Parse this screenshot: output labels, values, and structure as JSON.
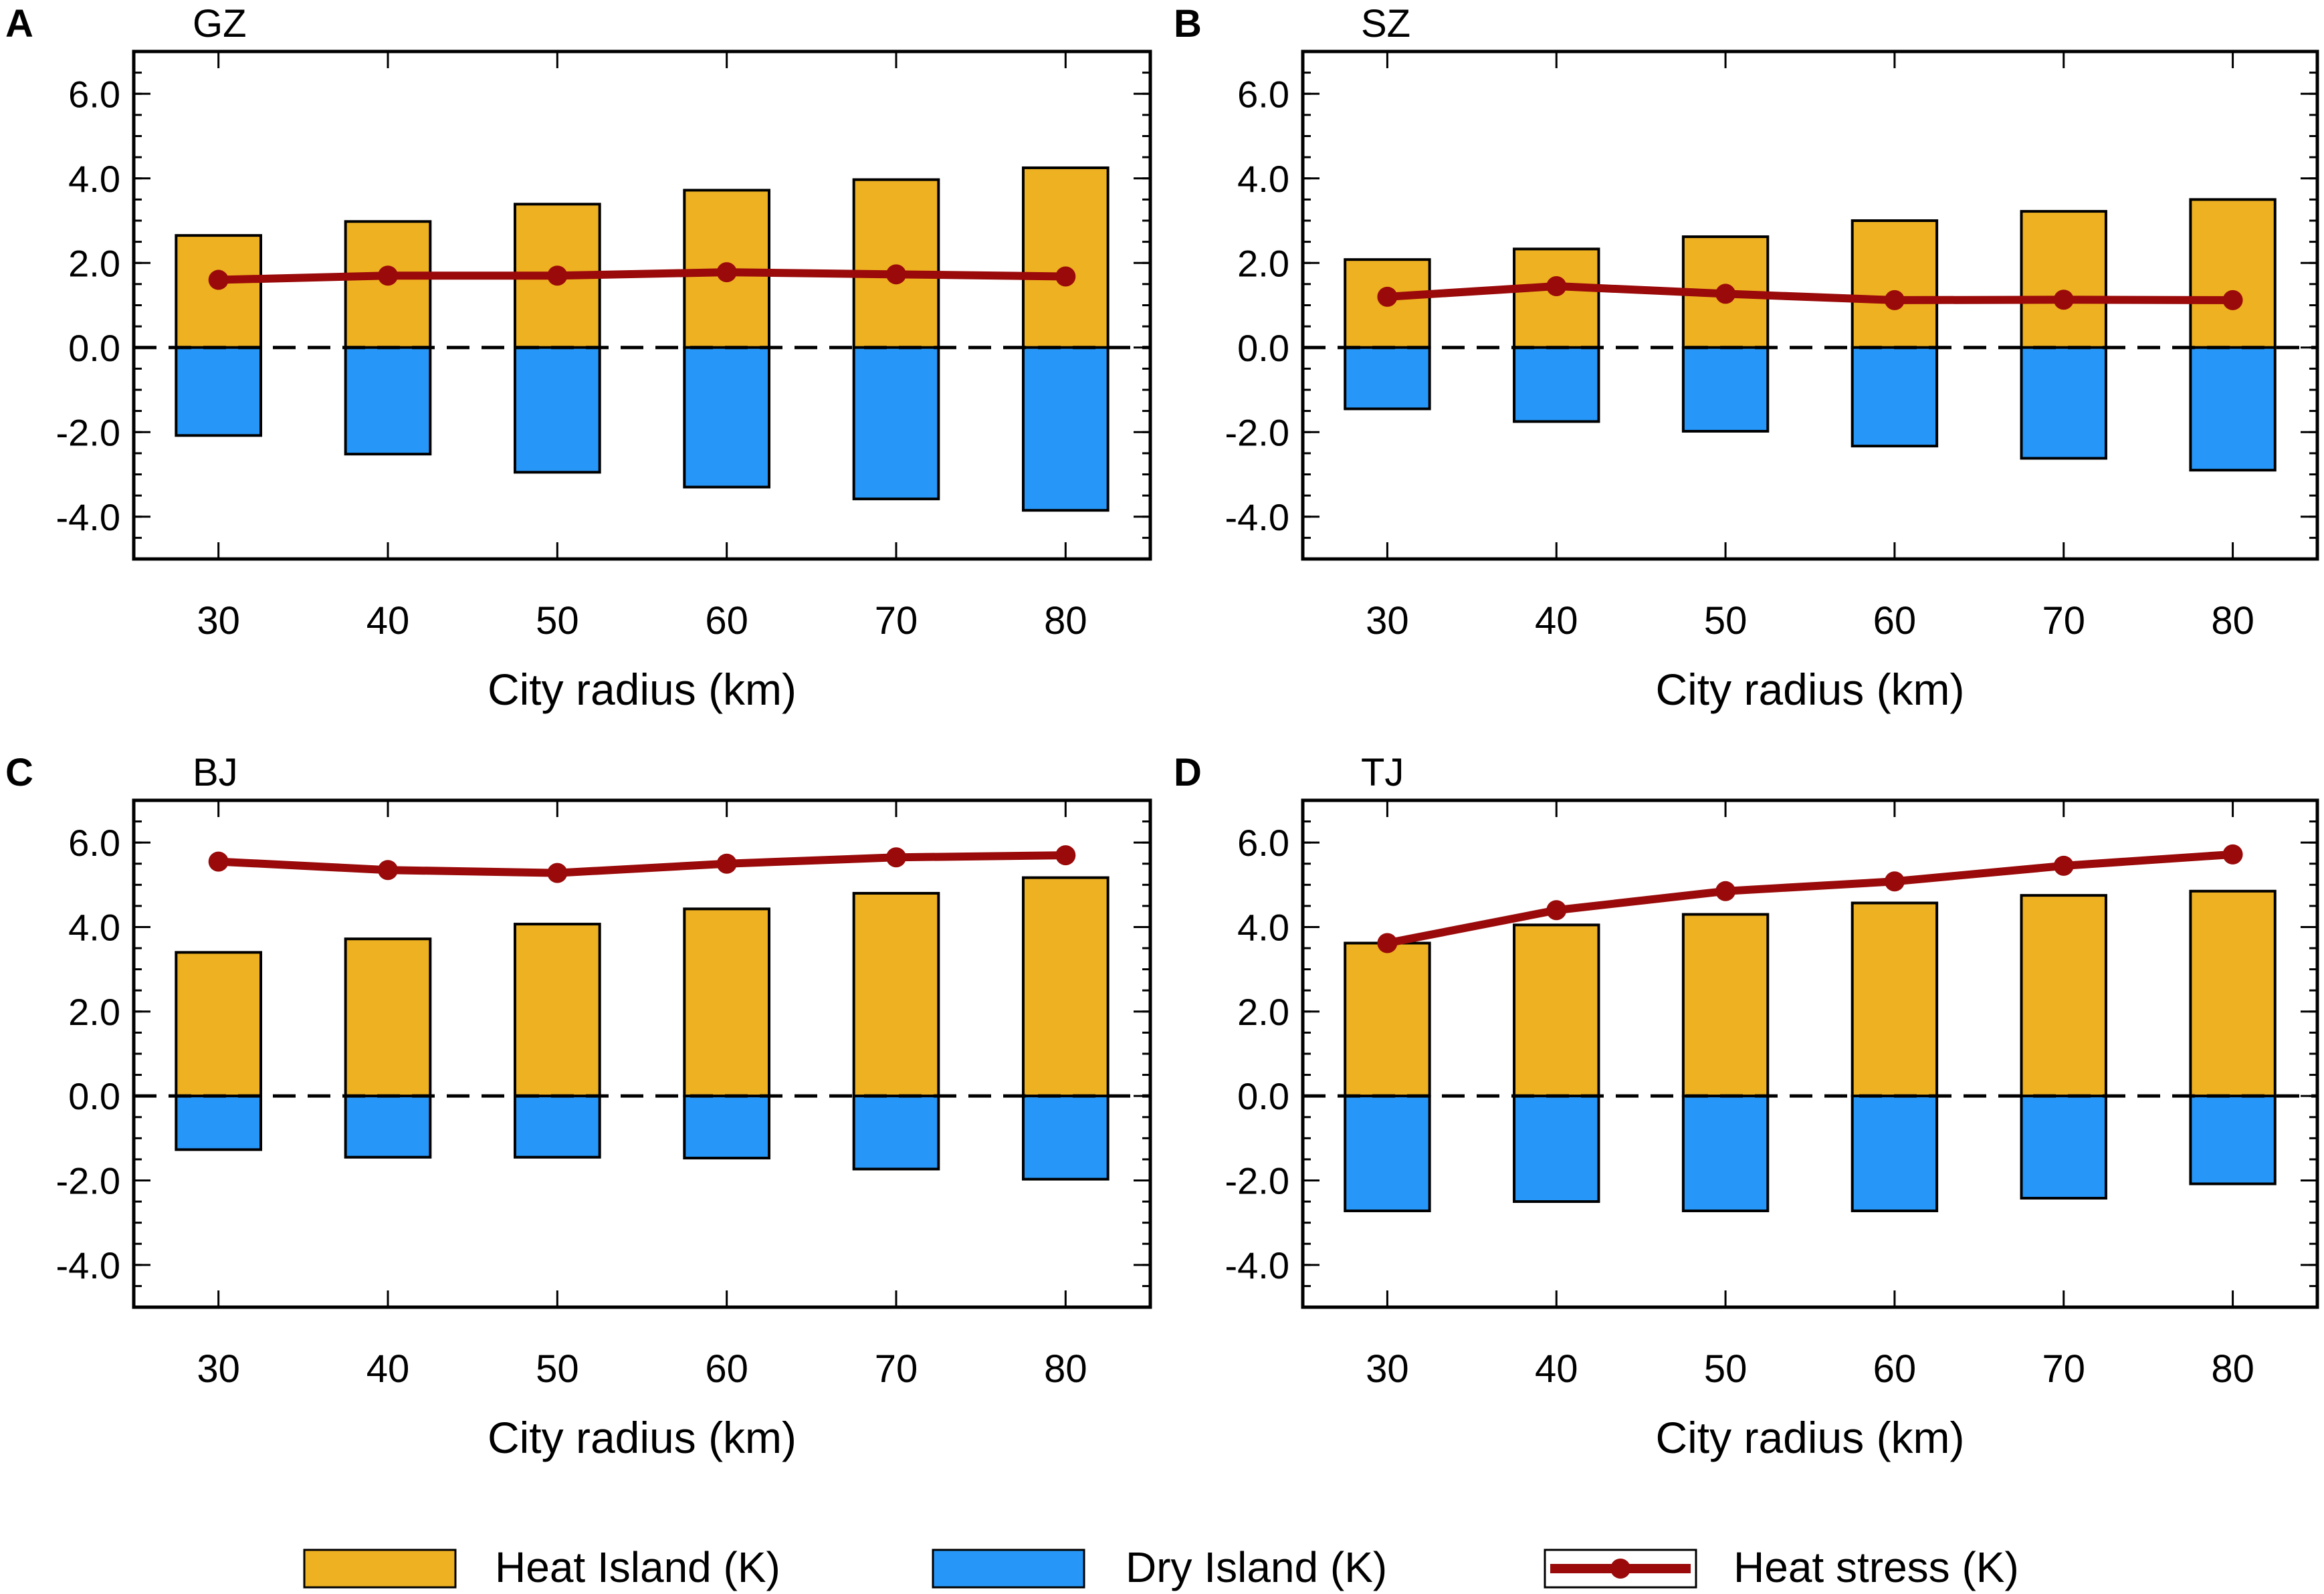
{
  "colors": {
    "heat_island": "#EEB122",
    "dry_island": "#2697F8",
    "heat_stress": "#9A0A0A"
  },
  "legend": {
    "heat_island": "Heat Island (K)",
    "dry_island": "Dry Island (K)",
    "heat_stress": "Heat stress (K)"
  },
  "chart_data": [
    {
      "type": "bar",
      "panel": "A",
      "title": "GZ",
      "xlabel": "City radius (km)",
      "ylabel": "",
      "categories": [
        "30",
        "40",
        "50",
        "60",
        "70",
        "80"
      ],
      "yticks": [
        "6.0",
        "4.0",
        "2.0",
        "0.0",
        "-2.0",
        "-4.0"
      ],
      "ylim": [
        -5.0,
        7.0
      ],
      "series": [
        {
          "name": "Heat Island (K)",
          "type": "bar",
          "values": [
            2.65,
            2.98,
            3.39,
            3.72,
            3.97,
            4.25
          ]
        },
        {
          "name": "Dry Island (K)",
          "type": "bar",
          "values": [
            -2.08,
            -2.52,
            -2.95,
            -3.3,
            -3.58,
            -3.85
          ]
        },
        {
          "name": "Heat stress (K)",
          "type": "line",
          "values": [
            1.6,
            1.7,
            1.7,
            1.78,
            1.73,
            1.68
          ]
        }
      ]
    },
    {
      "type": "bar",
      "panel": "B",
      "title": "SZ",
      "xlabel": "City radius (km)",
      "ylabel": "",
      "categories": [
        "30",
        "40",
        "50",
        "60",
        "70",
        "80"
      ],
      "yticks": [
        "6.0",
        "4.0",
        "2.0",
        "0.0",
        "-2.0",
        "-4.0"
      ],
      "ylim": [
        -5.0,
        7.0
      ],
      "series": [
        {
          "name": "Heat Island (K)",
          "type": "bar",
          "values": [
            2.08,
            2.33,
            2.62,
            3.0,
            3.22,
            3.5
          ]
        },
        {
          "name": "Dry Island (K)",
          "type": "bar",
          "values": [
            -1.45,
            -1.75,
            -1.98,
            -2.33,
            -2.62,
            -2.9
          ]
        },
        {
          "name": "Heat stress (K)",
          "type": "line",
          "values": [
            1.2,
            1.45,
            1.27,
            1.12,
            1.13,
            1.12
          ]
        }
      ]
    },
    {
      "type": "bar",
      "panel": "C",
      "title": "BJ",
      "xlabel": "City radius (km)",
      "ylabel": "",
      "categories": [
        "30",
        "40",
        "50",
        "60",
        "70",
        "80"
      ],
      "yticks": [
        "6.0",
        "4.0",
        "2.0",
        "0.0",
        "-2.0",
        "-4.0"
      ],
      "ylim": [
        -5.0,
        7.0
      ],
      "series": [
        {
          "name": "Heat Island (K)",
          "type": "bar",
          "values": [
            3.4,
            3.72,
            4.07,
            4.43,
            4.8,
            5.17
          ]
        },
        {
          "name": "Dry Island (K)",
          "type": "bar",
          "values": [
            -1.27,
            -1.45,
            -1.45,
            -1.47,
            -1.73,
            -1.97
          ]
        },
        {
          "name": "Heat stress (K)",
          "type": "line",
          "values": [
            5.55,
            5.35,
            5.28,
            5.5,
            5.65,
            5.7
          ]
        }
      ]
    },
    {
      "type": "bar",
      "panel": "D",
      "title": "TJ",
      "xlabel": "City radius (km)",
      "ylabel": "",
      "categories": [
        "30",
        "40",
        "50",
        "60",
        "70",
        "80"
      ],
      "yticks": [
        "6.0",
        "4.0",
        "2.0",
        "0.0",
        "-2.0",
        "-4.0"
      ],
      "ylim": [
        -5.0,
        7.0
      ],
      "series": [
        {
          "name": "Heat Island (K)",
          "type": "bar",
          "values": [
            3.62,
            4.05,
            4.3,
            4.57,
            4.75,
            4.85
          ]
        },
        {
          "name": "Dry Island (K)",
          "type": "bar",
          "values": [
            -2.72,
            -2.5,
            -2.72,
            -2.72,
            -2.42,
            -2.08
          ]
        },
        {
          "name": "Heat stress (K)",
          "type": "line",
          "values": [
            3.62,
            4.4,
            4.85,
            5.08,
            5.45,
            5.72
          ]
        }
      ]
    }
  ]
}
